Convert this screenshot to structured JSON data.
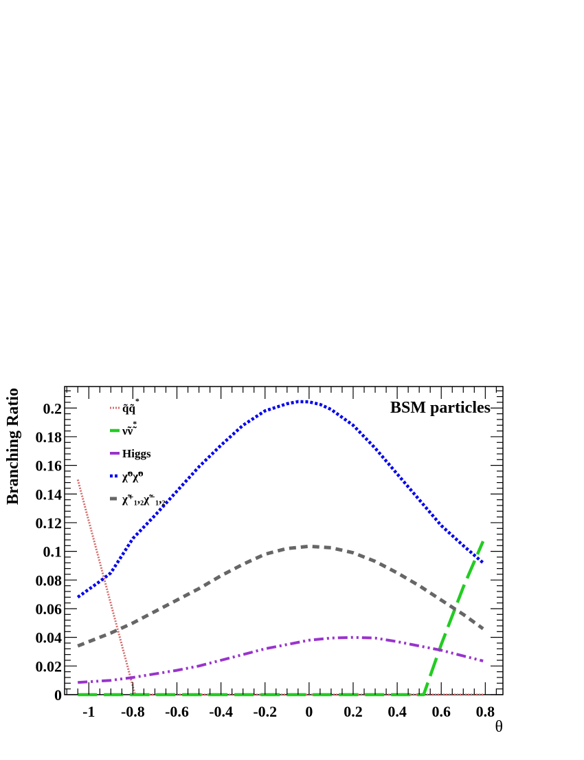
{
  "chart_data": {
    "type": "line",
    "title": "",
    "annotation": "BSM particles",
    "xlabel": "θ",
    "ylabel": "Branching Ratio",
    "xlim": [
      -1.11,
      0.88
    ],
    "ylim": [
      0,
      0.215
    ],
    "x_ticks": [
      -1,
      -0.8,
      -0.6,
      -0.4,
      -0.2,
      0,
      0.2,
      0.4,
      0.6,
      0.8
    ],
    "x_tick_labels": [
      "-1",
      "-0.8",
      "-0.6",
      "-0.4",
      "-0.2",
      "0",
      "0.2",
      "0.4",
      "0.6",
      "0.8"
    ],
    "y_ticks": [
      0,
      0.02,
      0.04,
      0.06,
      0.08,
      0.1,
      0.12,
      0.14,
      0.16,
      0.18,
      0.2
    ],
    "y_tick_labels": [
      "0",
      "0.02",
      "0.04",
      "0.06",
      "0.08",
      "0.1",
      "0.12",
      "0.14",
      "0.16",
      "0.18",
      "0.2"
    ],
    "grid": false,
    "legend_position": "top-left",
    "series": [
      {
        "name": "q̃q̃*",
        "color": "#d46a6a",
        "style": "dotted",
        "x": [
          -1.05,
          -0.79,
          -0.78,
          -0.7,
          -0.6,
          -0.4,
          -0.2,
          0.0,
          0.2,
          0.4,
          0.6,
          0.79
        ],
        "y": [
          0.15,
          0.0,
          0.0,
          0.0,
          0.0,
          0.0,
          0.0,
          0.0,
          0.0,
          0.0,
          0.0,
          0.0
        ]
      },
      {
        "name": "ν̃ν̃*",
        "color": "#22cc22",
        "style": "long-dash",
        "x": [
          -1.05,
          -0.8,
          -0.6,
          -0.4,
          -0.2,
          0.0,
          0.2,
          0.4,
          0.52,
          0.6,
          0.7,
          0.79
        ],
        "y": [
          0.0,
          0.0,
          0.0,
          0.0,
          0.0,
          0.0,
          0.0,
          0.0,
          0.0,
          0.035,
          0.075,
          0.107
        ]
      },
      {
        "name": "Higgs",
        "color": "#9933cc",
        "style": "dash-dot-dot",
        "x": [
          -1.05,
          -0.9,
          -0.8,
          -0.7,
          -0.6,
          -0.5,
          -0.4,
          -0.3,
          -0.2,
          -0.1,
          0.0,
          0.1,
          0.2,
          0.3,
          0.4,
          0.5,
          0.6,
          0.7,
          0.79
        ],
        "y": [
          0.0085,
          0.01,
          0.012,
          0.0145,
          0.017,
          0.02,
          0.024,
          0.028,
          0.032,
          0.035,
          0.038,
          0.0395,
          0.04,
          0.0395,
          0.037,
          0.034,
          0.031,
          0.027,
          0.0235
        ]
      },
      {
        "name": "χ̃⁰χ̃⁰",
        "color": "#0000ee",
        "style": "dotted-thick",
        "x": [
          -1.05,
          -0.95,
          -0.9,
          -0.85,
          -0.8,
          -0.7,
          -0.6,
          -0.5,
          -0.4,
          -0.3,
          -0.2,
          -0.1,
          -0.05,
          0.0,
          0.05,
          0.1,
          0.2,
          0.3,
          0.4,
          0.5,
          0.6,
          0.7,
          0.79
        ],
        "y": [
          0.068,
          0.079,
          0.085,
          0.097,
          0.109,
          0.125,
          0.142,
          0.159,
          0.174,
          0.188,
          0.198,
          0.203,
          0.2045,
          0.2043,
          0.2025,
          0.199,
          0.188,
          0.172,
          0.154,
          0.136,
          0.118,
          0.104,
          0.092
        ]
      },
      {
        "name": "χ̃⁺₁,₂χ̃⁻₁,₂",
        "color": "#666666",
        "style": "dashed",
        "x": [
          -1.05,
          -0.9,
          -0.8,
          -0.7,
          -0.6,
          -0.5,
          -0.4,
          -0.3,
          -0.2,
          -0.1,
          0.0,
          0.1,
          0.2,
          0.3,
          0.4,
          0.5,
          0.6,
          0.7,
          0.79
        ],
        "y": [
          0.034,
          0.043,
          0.05,
          0.058,
          0.066,
          0.074,
          0.083,
          0.091,
          0.098,
          0.102,
          0.1035,
          0.1025,
          0.099,
          0.093,
          0.085,
          0.076,
          0.066,
          0.056,
          0.046
        ]
      }
    ],
    "legend": [
      {
        "base": "q̃q̃",
        "sup": "*",
        "sub": ""
      },
      {
        "base": "ν̃ν̃",
        "sup": "*",
        "sub": ""
      },
      {
        "base": "Higgs",
        "sup": "",
        "sub": ""
      },
      {
        "base": "χ̃⁰χ̃⁰",
        "sup": "",
        "sub": ""
      },
      {
        "base": "χ̃⁺₁,₂χ̃⁻₁,₂",
        "sup": "",
        "sub": ""
      }
    ]
  }
}
